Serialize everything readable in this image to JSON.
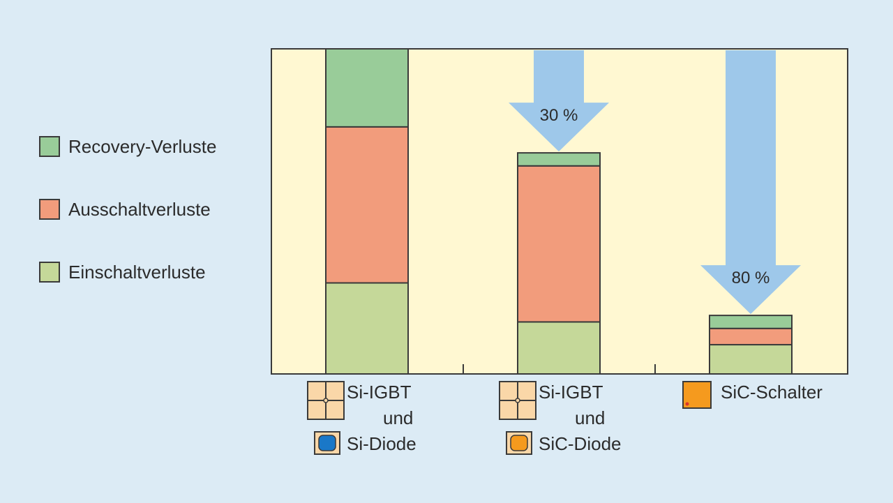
{
  "chart_data": {
    "type": "bar",
    "stacked": true,
    "categories": [
      "Si-IGBT und Si-Diode",
      "Si-IGBT und SiC-Diode",
      "SiC-Schalter"
    ],
    "category_labels": [
      {
        "lines": [
          "Si-IGBT",
          "und",
          "Si-Diode"
        ]
      },
      {
        "lines": [
          "Si-IGBT",
          "und",
          "SiC-Diode"
        ]
      },
      {
        "lines": [
          "SiC-Schalter"
        ]
      }
    ],
    "ylim": [
      0,
      100
    ],
    "series": [
      {
        "name": "Einschaltverluste",
        "values": [
          28,
          16,
          9
        ]
      },
      {
        "name": "Ausschaltverluste",
        "values": [
          48,
          48,
          5
        ]
      },
      {
        "name": "Recovery-Verluste",
        "values": [
          24,
          4,
          4
        ]
      }
    ],
    "annotations": [
      {
        "label": "30 %",
        "category_index": 1
      },
      {
        "label": "80 %",
        "category_index": 2
      }
    ],
    "legend_position": "left",
    "grid": false
  },
  "colors": {
    "Einschaltverluste": "#c5d899",
    "Ausschaltverluste": "#f29c7c",
    "Recovery-Verluste": "#99cc99",
    "plot_background": "#fff8d2",
    "page_background": "#dcebf5",
    "arrow": "#9ec8ea"
  },
  "icons": [
    {
      "category_index": 0,
      "chips": [
        "igbt-module-icon",
        "si-diode-icon"
      ]
    },
    {
      "category_index": 1,
      "chips": [
        "igbt-module-icon",
        "sic-diode-icon"
      ]
    },
    {
      "category_index": 2,
      "chips": [
        "sic-switch-icon"
      ]
    }
  ]
}
